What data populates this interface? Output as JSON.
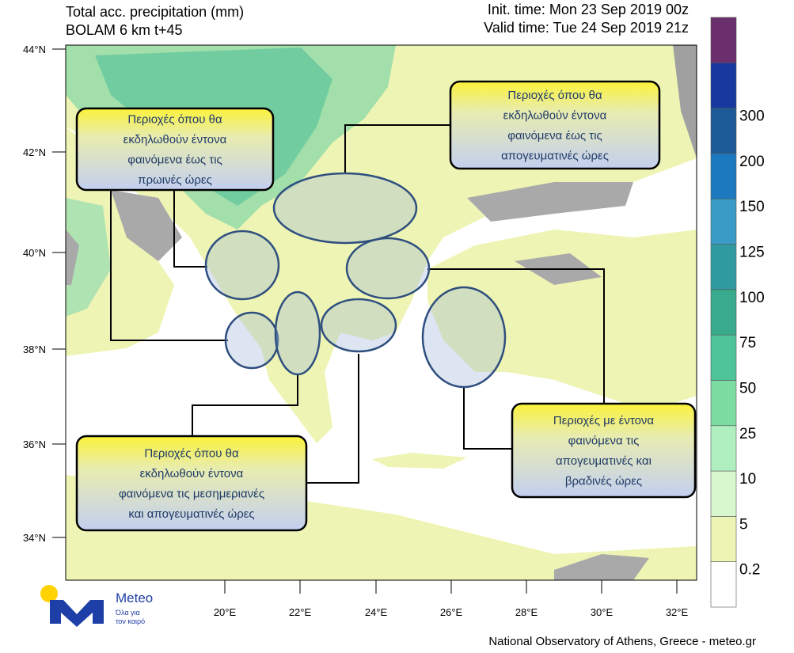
{
  "header": {
    "title": "Total acc. precipitation (mm)",
    "model": "BOLAM 6 km t+45",
    "init_time": "Init. time: Mon 23 Sep 2019 00z",
    "valid_time": "Valid time: Tue 24 Sep 2019 21z"
  },
  "map": {
    "lat_labels": [
      "44°N",
      "42°N",
      "40°N",
      "38°N",
      "36°N",
      "34°N"
    ],
    "lon_labels": [
      "20°E",
      "22°E",
      "24°E",
      "26°E",
      "28°E",
      "30°E",
      "32°E"
    ]
  },
  "colorbar": {
    "levels": [
      0.2,
      5,
      10,
      25,
      50,
      75,
      100,
      125,
      150,
      200,
      300
    ],
    "colors": [
      "#ffffff",
      "#eef5b4",
      "#d8f7cf",
      "#b0efbf",
      "#7cdca2",
      "#4fc39a",
      "#3aaa8c",
      "#2f9ba0",
      "#3a9cc6",
      "#1c79c0",
      "#1c5a98",
      "#18389f",
      "#6a2f6c"
    ]
  },
  "callouts": [
    {
      "lines": [
        "Περιοχές όπου θα",
        "εκδηλωθούν έντονα",
        "φαινόμενα έως τις",
        "πρωινές ώρες"
      ]
    },
    {
      "lines": [
        "Περιοχές όπου θα",
        "εκδηλωθούν έντονα",
        "φαινόμενα έως τις",
        "απογευματινές ώρες"
      ]
    },
    {
      "lines": [
        "Περιοχές όπου θα",
        "εκδηλωθούν έντονα",
        "φαινόμενα τις μεσημεριανές",
        "και απογευματινές ώρες"
      ]
    },
    {
      "lines": [
        "Περιοχές με έντονα",
        "φαινόμενα τις",
        "απογευματινές και",
        "βραδινές ώρες"
      ]
    }
  ],
  "footer": "National Observatory of Athens, Greece - meteo.gr",
  "logo": {
    "name": "Meteo",
    "tagline_1": "Όλα για",
    "tagline_2": "τον καιρό"
  }
}
